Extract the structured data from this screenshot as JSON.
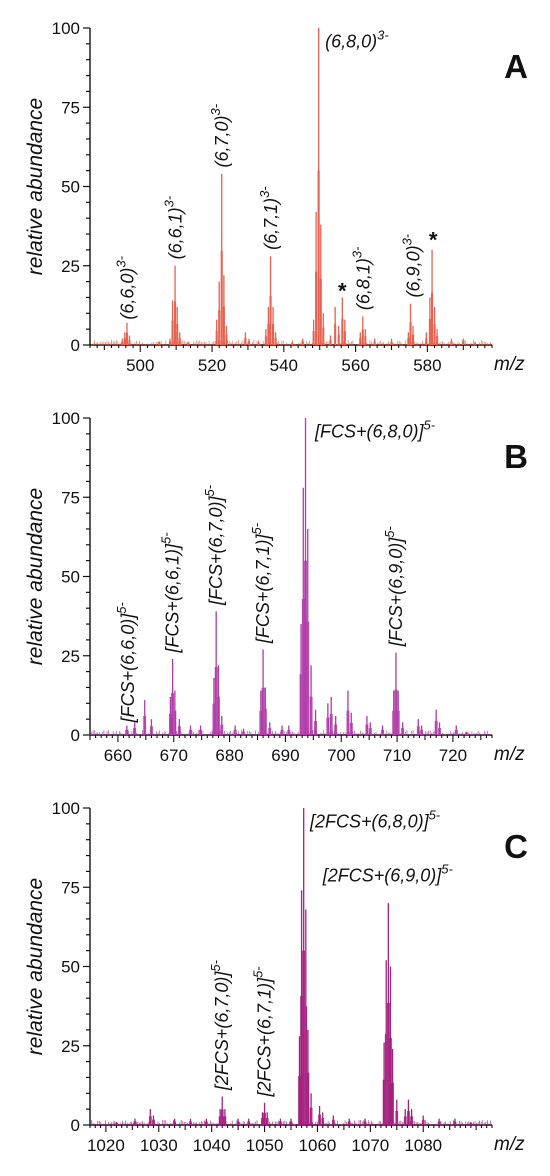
{
  "colors": {
    "panel_a": "#e8614f",
    "panel_b": "#b13aa8",
    "panel_c": "#a3207f",
    "axis": "#111111"
  },
  "chart_data": [
    {
      "type": "line",
      "panel": "A",
      "xlabel": "m/z",
      "ylabel": "relative abundance",
      "xlim": [
        486,
        598
      ],
      "ylim": [
        0,
        100
      ],
      "x_ticks": [
        500,
        520,
        540,
        560,
        580
      ],
      "y_ticks": [
        0,
        25,
        50,
        75,
        100
      ],
      "peaks": [
        {
          "x": 495.0,
          "y": 2
        },
        {
          "x": 495.7,
          "y": 4
        },
        {
          "x": 496.3,
          "y": 7
        },
        {
          "x": 497.0,
          "y": 3
        },
        {
          "x": 505.3,
          "y": 1
        },
        {
          "x": 508.3,
          "y": 2
        },
        {
          "x": 509.0,
          "y": 14
        },
        {
          "x": 509.7,
          "y": 25
        },
        {
          "x": 510.3,
          "y": 12
        },
        {
          "x": 511.0,
          "y": 4
        },
        {
          "x": 513.3,
          "y": 1
        },
        {
          "x": 521.3,
          "y": 8
        },
        {
          "x": 522.0,
          "y": 20
        },
        {
          "x": 522.7,
          "y": 54
        },
        {
          "x": 523.3,
          "y": 22
        },
        {
          "x": 524.0,
          "y": 6
        },
        {
          "x": 529.3,
          "y": 4
        },
        {
          "x": 530.3,
          "y": 2
        },
        {
          "x": 533.0,
          "y": 1
        },
        {
          "x": 535.0,
          "y": 5
        },
        {
          "x": 535.7,
          "y": 12
        },
        {
          "x": 536.3,
          "y": 28
        },
        {
          "x": 537.0,
          "y": 12
        },
        {
          "x": 537.7,
          "y": 4
        },
        {
          "x": 542.3,
          "y": 1
        },
        {
          "x": 545.3,
          "y": 2
        },
        {
          "x": 548.3,
          "y": 8
        },
        {
          "x": 549.0,
          "y": 42
        },
        {
          "x": 549.7,
          "y": 100
        },
        {
          "x": 550.3,
          "y": 38
        },
        {
          "x": 551.0,
          "y": 10
        },
        {
          "x": 553.0,
          "y": 3
        },
        {
          "x": 554.3,
          "y": 12
        },
        {
          "x": 555.3,
          "y": 6
        },
        {
          "x": 556.3,
          "y": 15
        },
        {
          "x": 557.0,
          "y": 8
        },
        {
          "x": 561.3,
          "y": 4
        },
        {
          "x": 562.0,
          "y": 9
        },
        {
          "x": 562.7,
          "y": 5
        },
        {
          "x": 565.3,
          "y": 2
        },
        {
          "x": 570.0,
          "y": 2
        },
        {
          "x": 574.7,
          "y": 4
        },
        {
          "x": 575.3,
          "y": 13
        },
        {
          "x": 576.0,
          "y": 6
        },
        {
          "x": 579.7,
          "y": 4
        },
        {
          "x": 580.7,
          "y": 15
        },
        {
          "x": 581.3,
          "y": 30
        },
        {
          "x": 582.0,
          "y": 12
        },
        {
          "x": 582.7,
          "y": 5
        },
        {
          "x": 586.7,
          "y": 2
        },
        {
          "x": 590.0,
          "y": 2
        },
        {
          "x": 593.3,
          "y": 1
        }
      ],
      "annotations": [
        {
          "text": "(6,6,0)",
          "sup": "3-",
          "x": 496.5,
          "y": 8,
          "rotate": true
        },
        {
          "text": "(6,6,1)",
          "sup": "3-",
          "x": 509.8,
          "y": 27,
          "rotate": true
        },
        {
          "text": "(6,7,0)",
          "sup": "3-",
          "x": 522.8,
          "y": 56,
          "rotate": true
        },
        {
          "text": "(6,7,1)",
          "sup": "3-",
          "x": 536.5,
          "y": 30,
          "rotate": true
        },
        {
          "text": "(6,8,0)",
          "sup": "3-",
          "x": 551.5,
          "y": 97,
          "rotate": false
        },
        {
          "text": "(6,8,1)",
          "sup": "3-",
          "x": 562.2,
          "y": 11,
          "rotate": true
        },
        {
          "text": "(6,9,0)",
          "sup": "3-",
          "x": 576.2,
          "y": 15,
          "rotate": true
        }
      ],
      "stars": [
        {
          "text": "*",
          "x": 556.3,
          "y": 16
        },
        {
          "text": "*",
          "x": 581.6,
          "y": 32
        }
      ]
    },
    {
      "type": "line",
      "panel": "B",
      "xlabel": "m/z",
      "ylabel": "relative abundance",
      "xlim": [
        655,
        727
      ],
      "ylim": [
        0,
        100
      ],
      "x_ticks": [
        660,
        670,
        680,
        690,
        700,
        710,
        720
      ],
      "y_ticks": [
        0,
        25,
        50,
        75,
        100
      ],
      "peaks": [
        {
          "x": 661.6,
          "y": 3
        },
        {
          "x": 663.0,
          "y": 4
        },
        {
          "x": 664.8,
          "y": 11
        },
        {
          "x": 666.0,
          "y": 5
        },
        {
          "x": 669.4,
          "y": 12
        },
        {
          "x": 669.8,
          "y": 24
        },
        {
          "x": 670.2,
          "y": 14
        },
        {
          "x": 671.0,
          "y": 5
        },
        {
          "x": 673.0,
          "y": 3
        },
        {
          "x": 674.8,
          "y": 3
        },
        {
          "x": 677.2,
          "y": 18
        },
        {
          "x": 677.6,
          "y": 39
        },
        {
          "x": 678.0,
          "y": 22
        },
        {
          "x": 678.6,
          "y": 6
        },
        {
          "x": 681.0,
          "y": 3
        },
        {
          "x": 682.5,
          "y": 2
        },
        {
          "x": 685.6,
          "y": 14
        },
        {
          "x": 686.0,
          "y": 27
        },
        {
          "x": 686.4,
          "y": 15
        },
        {
          "x": 687.2,
          "y": 4
        },
        {
          "x": 689.4,
          "y": 3
        },
        {
          "x": 690.6,
          "y": 3
        },
        {
          "x": 692.8,
          "y": 35
        },
        {
          "x": 693.2,
          "y": 78
        },
        {
          "x": 693.6,
          "y": 100
        },
        {
          "x": 694.0,
          "y": 65
        },
        {
          "x": 694.6,
          "y": 22
        },
        {
          "x": 695.4,
          "y": 8
        },
        {
          "x": 697.6,
          "y": 10
        },
        {
          "x": 698.2,
          "y": 12
        },
        {
          "x": 699.0,
          "y": 6
        },
        {
          "x": 701.2,
          "y": 14
        },
        {
          "x": 701.8,
          "y": 7
        },
        {
          "x": 704.6,
          "y": 6
        },
        {
          "x": 705.2,
          "y": 4
        },
        {
          "x": 707.4,
          "y": 3
        },
        {
          "x": 709.4,
          "y": 14
        },
        {
          "x": 709.8,
          "y": 26
        },
        {
          "x": 710.2,
          "y": 14
        },
        {
          "x": 711.0,
          "y": 4
        },
        {
          "x": 713.8,
          "y": 5
        },
        {
          "x": 714.4,
          "y": 3
        },
        {
          "x": 717.0,
          "y": 8
        },
        {
          "x": 717.6,
          "y": 4
        },
        {
          "x": 720.6,
          "y": 3
        },
        {
          "x": 722.4,
          "y": 1
        }
      ],
      "annotations": [
        {
          "text": "[FCS+(6,6,0)]",
          "sup": "5-",
          "x": 661.8,
          "y": 4,
          "rotate": true
        },
        {
          "text": "[FCS+(6,6,1)]",
          "sup": "5-",
          "x": 669.8,
          "y": 26,
          "rotate": true
        },
        {
          "text": "[FCS+(6,7,0)]",
          "sup": "5-",
          "x": 677.6,
          "y": 41,
          "rotate": true
        },
        {
          "text": "[FCS+(6,7,1)]",
          "sup": "5-",
          "x": 686.0,
          "y": 29,
          "rotate": true
        },
        {
          "text": "[FCS+(6,8,0)]",
          "sup": "5-",
          "x": 695.3,
          "y": 97,
          "rotate": false
        },
        {
          "text": "[FCS+(6,9,0)]",
          "sup": "5-",
          "x": 709.8,
          "y": 28,
          "rotate": true
        }
      ]
    },
    {
      "type": "line",
      "panel": "C",
      "xlabel": "m/z",
      "ylabel": "relative abundance",
      "xlim": [
        1017,
        1093
      ],
      "ylim": [
        0,
        100
      ],
      "x_ticks": [
        1020,
        1030,
        1040,
        1050,
        1060,
        1070,
        1080
      ],
      "y_ticks": [
        0,
        25,
        50,
        75,
        100
      ],
      "peaks": [
        {
          "x": 1022.0,
          "y": 1
        },
        {
          "x": 1025.5,
          "y": 2
        },
        {
          "x": 1028.4,
          "y": 5
        },
        {
          "x": 1029.0,
          "y": 3
        },
        {
          "x": 1033.0,
          "y": 2
        },
        {
          "x": 1036.0,
          "y": 2
        },
        {
          "x": 1039.0,
          "y": 2
        },
        {
          "x": 1041.6,
          "y": 5
        },
        {
          "x": 1042.0,
          "y": 9
        },
        {
          "x": 1042.5,
          "y": 5
        },
        {
          "x": 1045.0,
          "y": 2
        },
        {
          "x": 1047.0,
          "y": 2
        },
        {
          "x": 1049.6,
          "y": 4
        },
        {
          "x": 1050.0,
          "y": 7
        },
        {
          "x": 1050.5,
          "y": 4
        },
        {
          "x": 1053.0,
          "y": 2
        },
        {
          "x": 1055.0,
          "y": 2
        },
        {
          "x": 1056.6,
          "y": 28
        },
        {
          "x": 1057.0,
          "y": 74
        },
        {
          "x": 1057.4,
          "y": 100
        },
        {
          "x": 1057.8,
          "y": 68
        },
        {
          "x": 1058.2,
          "y": 30
        },
        {
          "x": 1058.8,
          "y": 10
        },
        {
          "x": 1060.4,
          "y": 6
        },
        {
          "x": 1061.0,
          "y": 4
        },
        {
          "x": 1063.0,
          "y": 3
        },
        {
          "x": 1066.0,
          "y": 2
        },
        {
          "x": 1069.0,
          "y": 2
        },
        {
          "x": 1072.6,
          "y": 26
        },
        {
          "x": 1073.0,
          "y": 52
        },
        {
          "x": 1073.4,
          "y": 70
        },
        {
          "x": 1073.8,
          "y": 50
        },
        {
          "x": 1074.2,
          "y": 24
        },
        {
          "x": 1075.0,
          "y": 8
        },
        {
          "x": 1076.6,
          "y": 5
        },
        {
          "x": 1077.2,
          "y": 8
        },
        {
          "x": 1077.8,
          "y": 5
        },
        {
          "x": 1080.0,
          "y": 3
        },
        {
          "x": 1083.0,
          "y": 2
        },
        {
          "x": 1086.0,
          "y": 2
        },
        {
          "x": 1089.0,
          "y": 1
        }
      ],
      "annotations": [
        {
          "text": "[2FCS+(6,7,0)]",
          "sup": "5-",
          "x": 1042.0,
          "y": 11,
          "rotate": true
        },
        {
          "text": "[2FCS+(6,7,1)]",
          "sup": "5-",
          "x": 1050.0,
          "y": 9,
          "rotate": true
        },
        {
          "text": "[2FCS+(6,8,0)]",
          "sup": "5-",
          "x": 1058.6,
          "y": 97,
          "rotate": false
        },
        {
          "text": "[2FCS+(6,9,0)]",
          "sup": "5-",
          "x": 1061.0,
          "y": 80,
          "rotate": false
        }
      ]
    }
  ]
}
